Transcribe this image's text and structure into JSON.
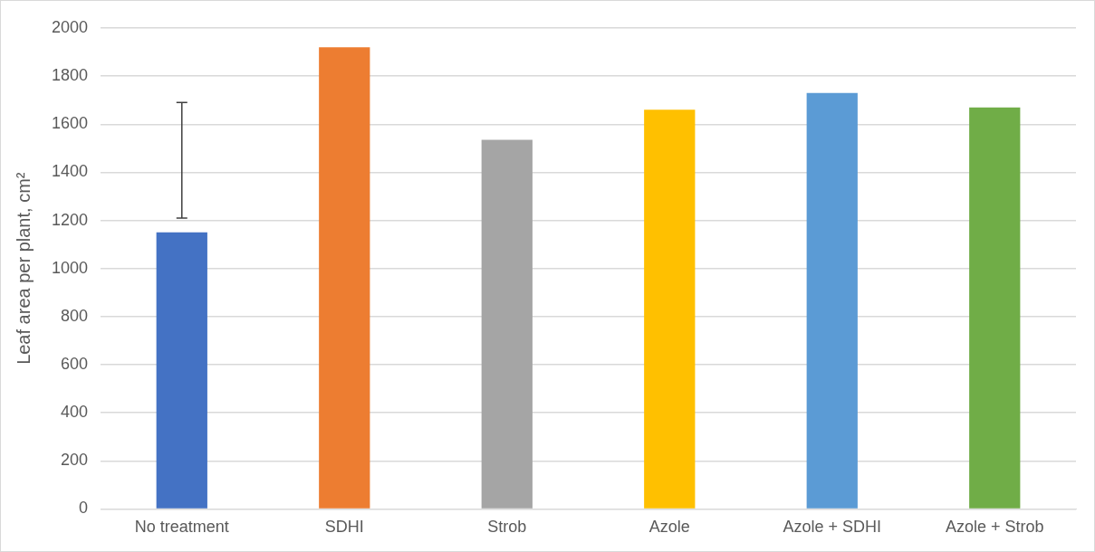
{
  "chart_data": {
    "type": "bar",
    "ylabel": "Leaf area per plant, cm²",
    "categories": [
      "No treatment",
      "SDHI",
      "Strob",
      "Azole",
      "Azole + SDHI",
      "Azole + Strob"
    ],
    "values": [
      1150,
      1920,
      1535,
      1660,
      1730,
      1670
    ],
    "colors": [
      "#4472c4",
      "#ed7d31",
      "#a5a5a5",
      "#ffc000",
      "#5b9bd5",
      "#70ad47"
    ],
    "errors": [
      [
        1210,
        1690
      ],
      null,
      null,
      null,
      null,
      null
    ],
    "ylim": [
      0,
      2000
    ],
    "yticks": [
      0,
      200,
      400,
      600,
      800,
      1000,
      1200,
      1400,
      1600,
      1800,
      2000
    ],
    "grid": "y",
    "legend": false
  }
}
